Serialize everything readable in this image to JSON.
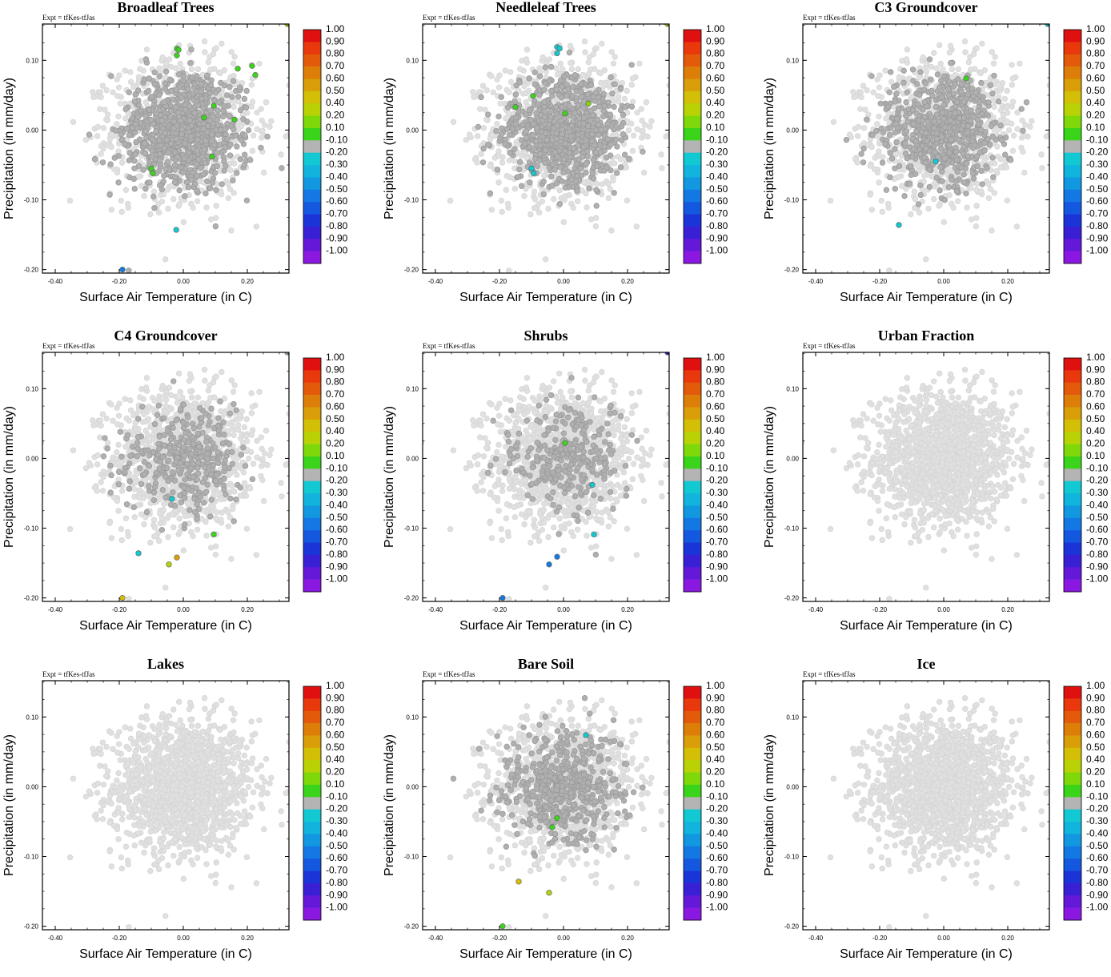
{
  "expt_label": "Expt = tfKes-tfJas",
  "xlabel": "Surface Air Temperature (in C)",
  "ylabel": "Precipitation (in mm/day)",
  "colorbar": {
    "labels": [
      "1.00",
      "0.90",
      "0.80",
      "0.70",
      "0.60",
      "0.50",
      "0.40",
      "0.20",
      "0.10",
      "-0.10",
      "-0.20",
      "-0.30",
      "-0.40",
      "-0.50",
      "-0.60",
      "-0.70",
      "-0.80",
      "-0.90",
      "-1.00"
    ],
    "colors": [
      "#e01010",
      "#e8380c",
      "#e35a0a",
      "#dd7e08",
      "#d99e08",
      "#d3bf06",
      "#b8d206",
      "#7ed80a",
      "#3ad41a",
      "#b4b4b4",
      "#12c8d2",
      "#10b4dc",
      "#1298e0",
      "#1478e4",
      "#1458e0",
      "#1a34d8",
      "#3a20d4",
      "#6418d8",
      "#8a18e0"
    ]
  },
  "chart_data": [
    {
      "type": "scatter",
      "title": "Broadleaf Trees",
      "xlim": [
        -0.44,
        0.33
      ],
      "ylim": [
        -0.205,
        0.152
      ],
      "xticks": [
        "-0.40",
        "-0.20",
        "0.00",
        "0.20"
      ],
      "yticks": [
        "0.10",
        "0.00",
        "-0.10",
        "-0.20"
      ],
      "cloud": {
        "mid_gray_fraction": 0.9,
        "spread_x": 0.11,
        "spread_y": 0.048
      },
      "highlights": [
        {
          "x": -0.02,
          "y": 0.117,
          "c": 0.1
        },
        {
          "x": -0.015,
          "y": 0.115,
          "c": 0.1
        },
        {
          "x": -0.02,
          "y": 0.107,
          "c": 0.1
        },
        {
          "x": 0.17,
          "y": 0.088,
          "c": 0.1
        },
        {
          "x": 0.215,
          "y": 0.092,
          "c": 0.1
        },
        {
          "x": 0.225,
          "y": 0.079,
          "c": 0.1
        },
        {
          "x": 0.095,
          "y": 0.035,
          "c": 0.1
        },
        {
          "x": 0.065,
          "y": 0.018,
          "c": 0.1
        },
        {
          "x": 0.16,
          "y": 0.015,
          "c": 0.1
        },
        {
          "x": 0.09,
          "y": -0.038,
          "c": 0.1
        },
        {
          "x": -0.1,
          "y": -0.055,
          "c": 0.1
        },
        {
          "x": -0.095,
          "y": -0.062,
          "c": 0.1
        },
        {
          "x": -0.022,
          "y": -0.143,
          "c": -0.2
        },
        {
          "x": -0.19,
          "y": -0.2,
          "c": -0.5
        },
        {
          "x": 0.325,
          "y": 0.152,
          "c": 0.4
        }
      ]
    },
    {
      "type": "scatter",
      "title": "Needleleaf Trees",
      "xlim": [
        -0.44,
        0.33
      ],
      "ylim": [
        -0.205,
        0.152
      ],
      "xticks": [
        "-0.40",
        "-0.20",
        "0.00",
        "0.20"
      ],
      "yticks": [
        "0.10",
        "0.00",
        "-0.10",
        "-0.20"
      ],
      "cloud": {
        "mid_gray_fraction": 0.8,
        "spread_x": 0.11,
        "spread_y": 0.048
      },
      "highlights": [
        {
          "x": -0.02,
          "y": 0.119,
          "c": -0.2
        },
        {
          "x": -0.012,
          "y": 0.117,
          "c": -0.2
        },
        {
          "x": -0.02,
          "y": 0.11,
          "c": -0.2
        },
        {
          "x": -0.095,
          "y": 0.049,
          "c": 0.1
        },
        {
          "x": -0.15,
          "y": 0.033,
          "c": 0.1
        },
        {
          "x": 0.078,
          "y": 0.038,
          "c": 0.2
        },
        {
          "x": 0.005,
          "y": 0.024,
          "c": 0.1
        },
        {
          "x": -0.1,
          "y": -0.055,
          "c": -0.2
        },
        {
          "x": -0.093,
          "y": -0.062,
          "c": -0.2
        },
        {
          "x": 0.325,
          "y": 0.152,
          "c": 0.4
        }
      ]
    },
    {
      "type": "scatter",
      "title": "C3 Groundcover",
      "xlim": [
        -0.44,
        0.33
      ],
      "ylim": [
        -0.205,
        0.152
      ],
      "xticks": [
        "-0.40",
        "-0.20",
        "0.00",
        "0.20"
      ],
      "yticks": [
        "0.10",
        "0.00",
        "-0.10",
        "-0.20"
      ],
      "cloud": {
        "mid_gray_fraction": 0.65,
        "spread_x": 0.11,
        "spread_y": 0.048
      },
      "highlights": [
        {
          "x": 0.07,
          "y": 0.074,
          "c": 0.1
        },
        {
          "x": -0.025,
          "y": -0.045,
          "c": -0.2
        },
        {
          "x": -0.14,
          "y": -0.136,
          "c": -0.2
        },
        {
          "x": 0.325,
          "y": 0.152,
          "c": -0.2
        }
      ]
    },
    {
      "type": "scatter",
      "title": "C4 Groundcover",
      "xlim": [
        -0.44,
        0.33
      ],
      "ylim": [
        -0.205,
        0.152
      ],
      "xticks": [
        "-0.40",
        "-0.20",
        "0.00",
        "0.20"
      ],
      "yticks": [
        "0.10",
        "0.00",
        "-0.10",
        "-0.20"
      ],
      "cloud": {
        "mid_gray_fraction": 0.35,
        "spread_x": 0.11,
        "spread_y": 0.048
      },
      "highlights": [
        {
          "x": -0.035,
          "y": -0.058,
          "c": -0.2
        },
        {
          "x": 0.095,
          "y": -0.109,
          "c": 0.1
        },
        {
          "x": -0.14,
          "y": -0.136,
          "c": -0.2
        },
        {
          "x": -0.02,
          "y": -0.142,
          "c": 0.6
        },
        {
          "x": -0.045,
          "y": -0.152,
          "c": 0.4
        },
        {
          "x": -0.19,
          "y": -0.2,
          "c": 0.5
        },
        {
          "x": 0.325,
          "y": 0.152,
          "c": -0.1
        }
      ]
    },
    {
      "type": "scatter",
      "title": "Shrubs",
      "xlim": [
        -0.44,
        0.33
      ],
      "ylim": [
        -0.205,
        0.152
      ],
      "xticks": [
        "-0.40",
        "-0.20",
        "0.00",
        "0.20"
      ],
      "yticks": [
        "0.10",
        "0.00",
        "-0.10",
        "-0.20"
      ],
      "cloud": {
        "mid_gray_fraction": 0.3,
        "spread_x": 0.11,
        "spread_y": 0.048
      },
      "highlights": [
        {
          "x": 0.005,
          "y": 0.022,
          "c": 0.1
        },
        {
          "x": 0.09,
          "y": -0.038,
          "c": -0.2
        },
        {
          "x": 0.095,
          "y": -0.109,
          "c": -0.2
        },
        {
          "x": -0.02,
          "y": -0.141,
          "c": -0.5
        },
        {
          "x": -0.045,
          "y": -0.152,
          "c": -0.5
        },
        {
          "x": -0.19,
          "y": -0.2,
          "c": -0.5
        },
        {
          "x": 0.325,
          "y": 0.152,
          "c": -0.8
        }
      ]
    },
    {
      "type": "scatter",
      "title": "Urban Fraction",
      "xlim": [
        -0.44,
        0.33
      ],
      "ylim": [
        -0.205,
        0.152
      ],
      "xticks": [
        "-0.40",
        "-0.20",
        "0.00",
        "0.20"
      ],
      "yticks": [
        "0.10",
        "0.00",
        "-0.10",
        "-0.20"
      ],
      "cloud": {
        "mid_gray_fraction": 0,
        "spread_x": 0.11,
        "spread_y": 0.048
      },
      "highlights": []
    },
    {
      "type": "scatter",
      "title": "Lakes",
      "xlim": [
        -0.44,
        0.33
      ],
      "ylim": [
        -0.205,
        0.152
      ],
      "xticks": [
        "-0.40",
        "-0.20",
        "0.00",
        "0.20"
      ],
      "yticks": [
        "0.10",
        "0.00",
        "-0.10",
        "-0.20"
      ],
      "cloud": {
        "mid_gray_fraction": 0,
        "spread_x": 0.11,
        "spread_y": 0.048
      },
      "highlights": []
    },
    {
      "type": "scatter",
      "title": "Bare Soil",
      "xlim": [
        -0.44,
        0.33
      ],
      "ylim": [
        -0.205,
        0.152
      ],
      "xticks": [
        "-0.40",
        "-0.20",
        "0.00",
        "0.20"
      ],
      "yticks": [
        "0.10",
        "0.00",
        "-0.10",
        "-0.20"
      ],
      "cloud": {
        "mid_gray_fraction": 0.5,
        "spread_x": 0.11,
        "spread_y": 0.048
      },
      "highlights": [
        {
          "x": 0.07,
          "y": 0.074,
          "c": -0.2
        },
        {
          "x": -0.02,
          "y": -0.045,
          "c": 0.1
        },
        {
          "x": -0.035,
          "y": -0.058,
          "c": 0.1
        },
        {
          "x": -0.14,
          "y": -0.136,
          "c": 0.5
        },
        {
          "x": -0.045,
          "y": -0.152,
          "c": 0.4
        },
        {
          "x": -0.19,
          "y": -0.2,
          "c": 0.1
        }
      ]
    },
    {
      "type": "scatter",
      "title": "Ice",
      "xlim": [
        -0.44,
        0.33
      ],
      "ylim": [
        -0.205,
        0.152
      ],
      "xticks": [
        "-0.40",
        "-0.20",
        "0.00",
        "0.20"
      ],
      "yticks": [
        "0.10",
        "0.00",
        "-0.10",
        "-0.20"
      ],
      "cloud": {
        "mid_gray_fraction": 0,
        "spread_x": 0.11,
        "spread_y": 0.048
      },
      "highlights": []
    }
  ]
}
